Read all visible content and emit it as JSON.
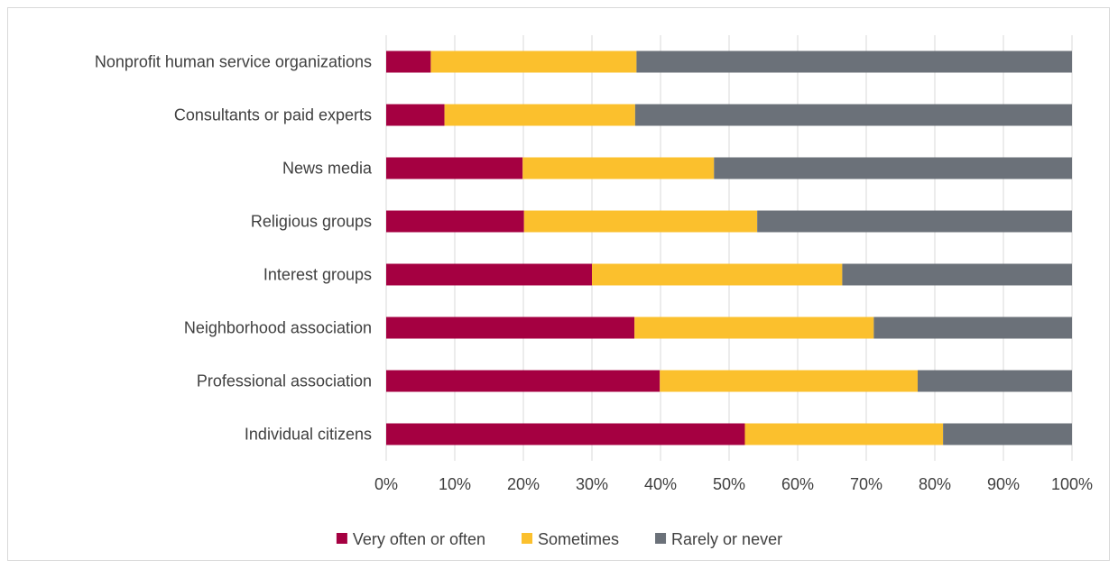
{
  "chart_data": {
    "type": "bar",
    "orientation": "horizontal",
    "stacked": "percent",
    "categories": [
      "Nonprofit human service organizations",
      "Consultants or paid experts",
      "News media",
      "Religious groups",
      "Interest groups",
      "Neighborhood association",
      "Professional association",
      "Individual citizens"
    ],
    "series": [
      {
        "name": "Very often or often",
        "color": "#a50041",
        "values": [
          6.5,
          8.5,
          19.9,
          20.1,
          30.0,
          36.2,
          39.9,
          52.3
        ]
      },
      {
        "name": "Sometimes",
        "color": "#fbc02d",
        "values": [
          30.0,
          27.8,
          27.9,
          34.0,
          36.5,
          34.9,
          37.6,
          28.9
        ]
      },
      {
        "name": "Rarely or never",
        "color": "#6b7179",
        "values": [
          63.5,
          63.7,
          52.2,
          45.9,
          33.5,
          28.9,
          22.5,
          18.8
        ]
      }
    ],
    "x_ticks": [
      "0%",
      "10%",
      "20%",
      "30%",
      "40%",
      "50%",
      "60%",
      "70%",
      "80%",
      "90%",
      "100%"
    ],
    "xlim": [
      0,
      100
    ],
    "grid": true,
    "legend_position": "bottom",
    "title": "",
    "xlabel": "",
    "ylabel": ""
  }
}
